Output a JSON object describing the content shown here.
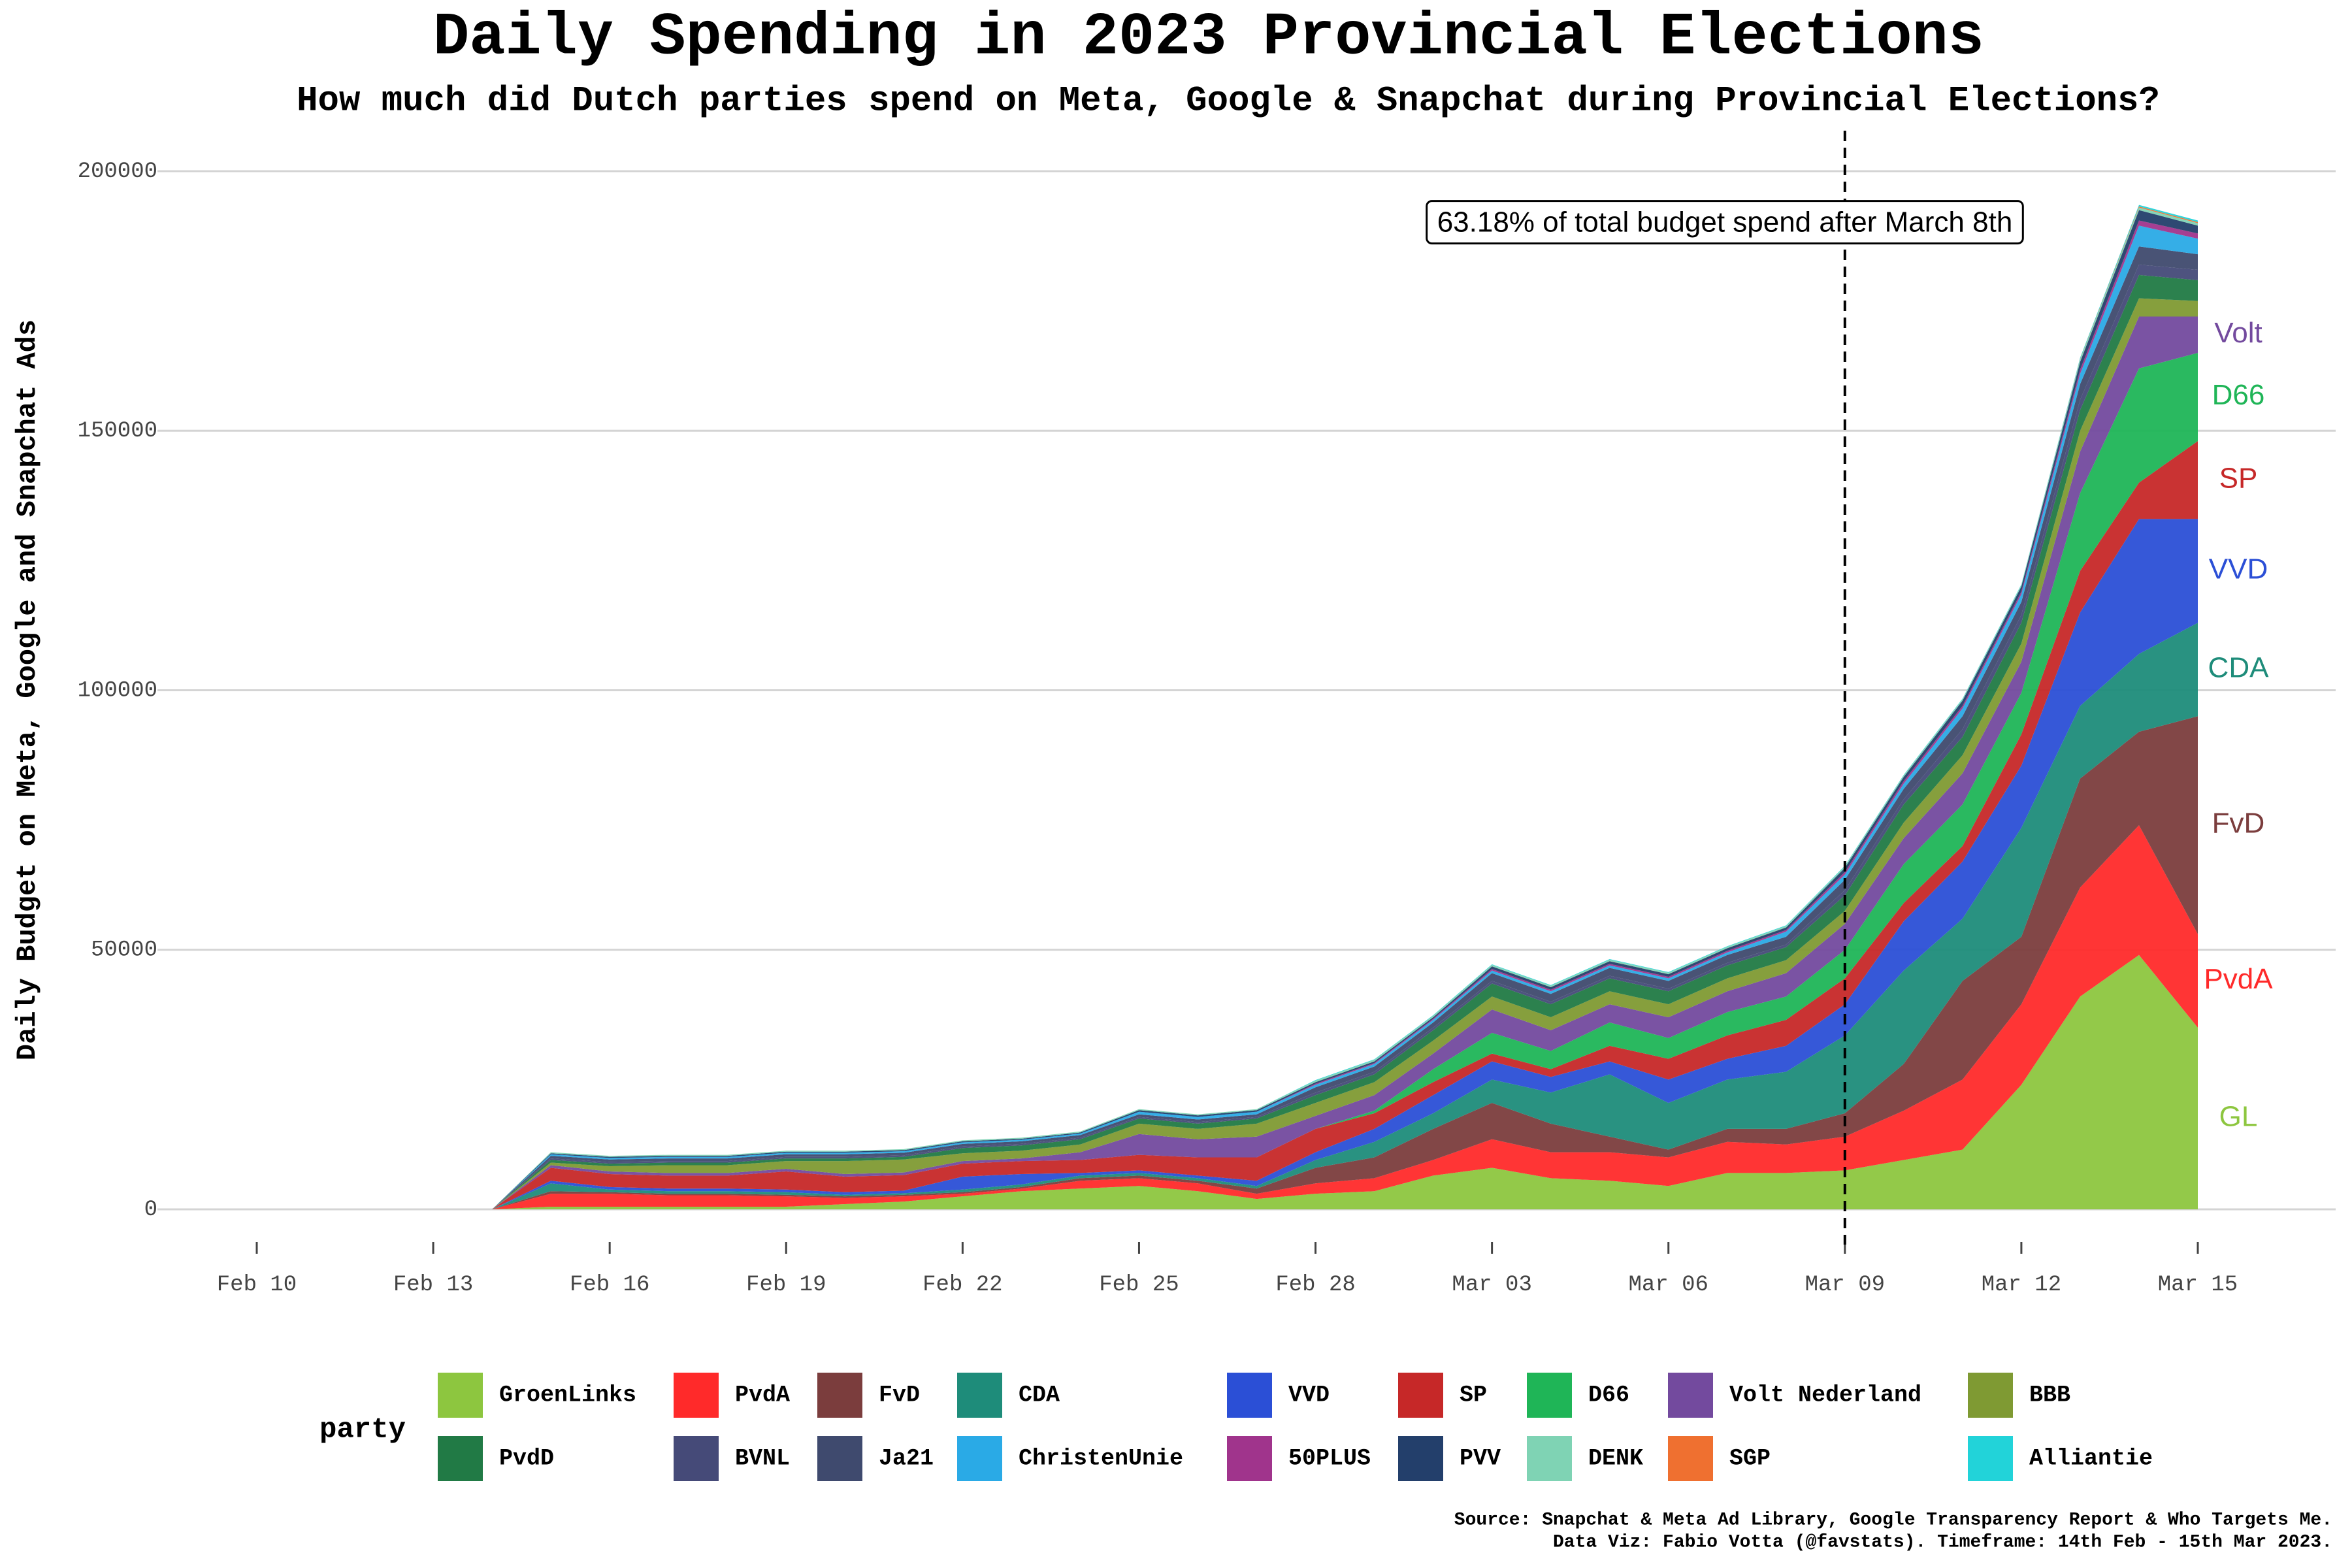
{
  "chart_data": {
    "type": "stacked_area",
    "title": "Daily Spending in 2023 Provincial Elections",
    "subtitle": "How much did Dutch parties spend on Meta, Google & Snapchat during Provincial Elections?",
    "y_label": "Daily Budget on Meta, Google and Snapchat Ads",
    "legend_title": "party",
    "source": [
      "Source: Snapchat & Meta Ad Library, Google Transparency Report & Who Targets Me.",
      "Data Viz: Fabio Votta (@favstats). Timeframe: 14th Feb - 15th Mar 2023."
    ],
    "annotation": {
      "text": "63.18% of total budget spend after March 8th",
      "at": "Mar 09"
    },
    "grid": true,
    "ylim": [
      0,
      200000
    ],
    "yticks": [
      0,
      50000,
      100000,
      150000,
      200000
    ],
    "categories": [
      "Feb 10",
      null,
      null,
      "Feb 13",
      null,
      null,
      "Feb 16",
      null,
      null,
      "Feb 19",
      null,
      null,
      "Feb 22",
      null,
      null,
      "Feb 25",
      null,
      null,
      "Feb 28",
      null,
      null,
      "Mar 03",
      null,
      null,
      "Mar 06",
      null,
      null,
      "Mar 09",
      null,
      null,
      "Mar 12",
      null,
      null,
      "Mar 15"
    ],
    "series": [
      {
        "name": "GroenLinks",
        "end_label": "GL",
        "color": "#8dc63f",
        "values": [
          0,
          0,
          0,
          0,
          0,
          500,
          500,
          500,
          500,
          500,
          1000,
          1500,
          2500,
          3500,
          4000,
          4500,
          3500,
          2000,
          3000,
          3500,
          6500,
          8000,
          6000,
          5500,
          4500,
          7000,
          7000,
          7500,
          9500,
          11500,
          24000,
          41000,
          49000,
          35000
        ]
      },
      {
        "name": "PvdA",
        "end_label": "PvdA",
        "color": "#ff2a2a",
        "values": [
          0,
          0,
          0,
          0,
          0,
          2500,
          2500,
          2200,
          2200,
          2000,
          1200,
          1000,
          500,
          500,
          1500,
          1500,
          1500,
          1000,
          2000,
          2500,
          3000,
          5500,
          5000,
          5500,
          5500,
          6000,
          5500,
          6500,
          9500,
          13500,
          15500,
          21000,
          25000,
          18000
        ]
      },
      {
        "name": "FvD",
        "end_label": "FvD",
        "color": "#7b3d3d",
        "values": [
          0,
          0,
          0,
          0,
          0,
          500,
          300,
          300,
          300,
          300,
          300,
          300,
          300,
          300,
          500,
          500,
          500,
          1000,
          3000,
          4000,
          6000,
          7000,
          5500,
          3000,
          1500,
          2500,
          3000,
          4500,
          9000,
          19000,
          13000,
          21000,
          18000,
          42000
        ]
      },
      {
        "name": "CDA",
        "end_label": "CDA",
        "color": "#1e8c7a",
        "values": [
          0,
          0,
          0,
          0,
          0,
          1500,
          500,
          500,
          500,
          500,
          300,
          300,
          500,
          500,
          500,
          500,
          500,
          500,
          1500,
          3000,
          3000,
          4500,
          6000,
          12000,
          9000,
          9500,
          11000,
          15000,
          18000,
          12000,
          21000,
          14000,
          15000,
          18000
        ]
      },
      {
        "name": "VVD",
        "end_label": "VVD",
        "color": "#2b4fd6",
        "values": [
          0,
          0,
          0,
          0,
          0,
          500,
          500,
          500,
          500,
          500,
          500,
          500,
          2500,
          2000,
          500,
          500,
          500,
          1000,
          1500,
          2500,
          3500,
          3500,
          3000,
          2500,
          4500,
          4000,
          5000,
          6000,
          9500,
          11000,
          12000,
          18000,
          26000,
          20000
        ]
      },
      {
        "name": "SP",
        "end_label": "SP",
        "color": "#c62828",
        "values": [
          0,
          0,
          0,
          0,
          0,
          2500,
          2500,
          2500,
          2500,
          3500,
          3000,
          3000,
          2500,
          2500,
          2500,
          3000,
          3500,
          4500,
          4500,
          3000,
          2500,
          1500,
          1500,
          3000,
          4000,
          4500,
          5000,
          5000,
          3500,
          3000,
          6000,
          8000,
          7000,
          15000
        ]
      },
      {
        "name": "D66",
        "end_label": "D66",
        "color": "#1fb557",
        "values": [
          0,
          0,
          0,
          0,
          0,
          0,
          0,
          0,
          0,
          0,
          0,
          0,
          0,
          0,
          0,
          0,
          0,
          0,
          0,
          500,
          2500,
          4000,
          3500,
          4500,
          4000,
          4500,
          4500,
          5500,
          7500,
          8000,
          8000,
          15000,
          22000,
          17000
        ]
      },
      {
        "name": "Volt Nederland",
        "end_label": "Volt",
        "color": "#734a9e",
        "values": [
          0,
          0,
          0,
          0,
          0,
          500,
          500,
          500,
          500,
          500,
          500,
          500,
          500,
          500,
          1500,
          4000,
          3500,
          4000,
          2500,
          3000,
          3000,
          4500,
          4000,
          3500,
          4000,
          4000,
          4500,
          5000,
          5000,
          6000,
          6000,
          8000,
          10000,
          7000
        ]
      },
      {
        "name": "BBB",
        "color": "#7f9a33",
        "values": [
          0,
          0,
          0,
          0,
          0,
          500,
          1000,
          1500,
          1500,
          1500,
          2500,
          2500,
          1500,
          1500,
          1500,
          2000,
          2000,
          2500,
          2500,
          2500,
          2500,
          2500,
          2500,
          2500,
          2500,
          2500,
          2500,
          2500,
          3000,
          3500,
          3500,
          4000,
          3500,
          3000
        ]
      },
      {
        "name": "PvdD",
        "color": "#217a45",
        "values": [
          0,
          0,
          0,
          0,
          0,
          500,
          500,
          500,
          500,
          500,
          500,
          500,
          1000,
          1000,
          1000,
          1000,
          1000,
          1000,
          1500,
          1500,
          2000,
          2500,
          2500,
          2500,
          2500,
          2500,
          2500,
          3000,
          3500,
          3500,
          4000,
          4000,
          4500,
          4000
        ]
      },
      {
        "name": "BVNL",
        "color": "#454a78",
        "values": [
          0,
          0,
          0,
          0,
          0,
          300,
          300,
          300,
          300,
          300,
          300,
          300,
          300,
          300,
          300,
          300,
          300,
          300,
          500,
          500,
          500,
          500,
          500,
          500,
          500,
          500,
          500,
          1000,
          1000,
          1500,
          1500,
          2000,
          2000,
          2000
        ]
      },
      {
        "name": "Ja21",
        "color": "#3f4a6e",
        "values": [
          0,
          0,
          0,
          0,
          0,
          500,
          500,
          500,
          500,
          500,
          500,
          500,
          500,
          500,
          500,
          500,
          500,
          500,
          1000,
          1000,
          1000,
          1500,
          1500,
          1500,
          1500,
          1500,
          1500,
          2000,
          2000,
          2500,
          2500,
          3000,
          3500,
          3000
        ]
      },
      {
        "name": "ChristenUnie",
        "color": "#2aaae6",
        "values": [
          0,
          0,
          0,
          0,
          0,
          300,
          300,
          300,
          300,
          300,
          300,
          300,
          300,
          300,
          300,
          500,
          500,
          500,
          500,
          500,
          500,
          500,
          500,
          500,
          500,
          500,
          1000,
          1000,
          1000,
          1500,
          1500,
          2000,
          4000,
          3000
        ]
      },
      {
        "name": "50PLUS",
        "color": "#a0348c",
        "values": [
          0,
          0,
          0,
          0,
          0,
          0,
          0,
          0,
          0,
          0,
          0,
          0,
          0,
          0,
          0,
          0,
          0,
          0,
          200,
          200,
          200,
          300,
          300,
          300,
          300,
          300,
          300,
          500,
          500,
          500,
          500,
          800,
          1000,
          1000
        ]
      },
      {
        "name": "PVV",
        "color": "#233f6b",
        "values": [
          0,
          0,
          0,
          0,
          0,
          200,
          200,
          200,
          200,
          200,
          200,
          200,
          200,
          200,
          200,
          300,
          300,
          300,
          300,
          300,
          300,
          500,
          500,
          500,
          500,
          500,
          500,
          800,
          800,
          1000,
          1000,
          1500,
          2000,
          1500
        ]
      },
      {
        "name": "DENK",
        "color": "#7fd3b4",
        "values": [
          0,
          0,
          0,
          0,
          0,
          200,
          200,
          200,
          200,
          200,
          200,
          200,
          200,
          200,
          200,
          200,
          200,
          200,
          300,
          300,
          300,
          300,
          300,
          300,
          300,
          300,
          300,
          300,
          300,
          300,
          300,
          500,
          500,
          500
        ]
      },
      {
        "name": "SGP",
        "color": "#ef7030",
        "values": [
          0,
          0,
          0,
          0,
          0,
          0,
          0,
          0,
          0,
          0,
          0,
          0,
          0,
          0,
          0,
          0,
          0,
          0,
          0,
          0,
          0,
          0,
          0,
          0,
          0,
          0,
          0,
          0,
          0,
          0,
          0,
          100,
          200,
          200
        ]
      },
      {
        "name": "Alliantie",
        "color": "#22d3d9",
        "values": [
          0,
          0,
          0,
          0,
          0,
          0,
          0,
          0,
          0,
          0,
          0,
          0,
          0,
          0,
          0,
          0,
          0,
          0,
          100,
          100,
          100,
          100,
          100,
          100,
          100,
          100,
          100,
          100,
          100,
          100,
          100,
          200,
          300,
          300
        ]
      }
    ]
  }
}
